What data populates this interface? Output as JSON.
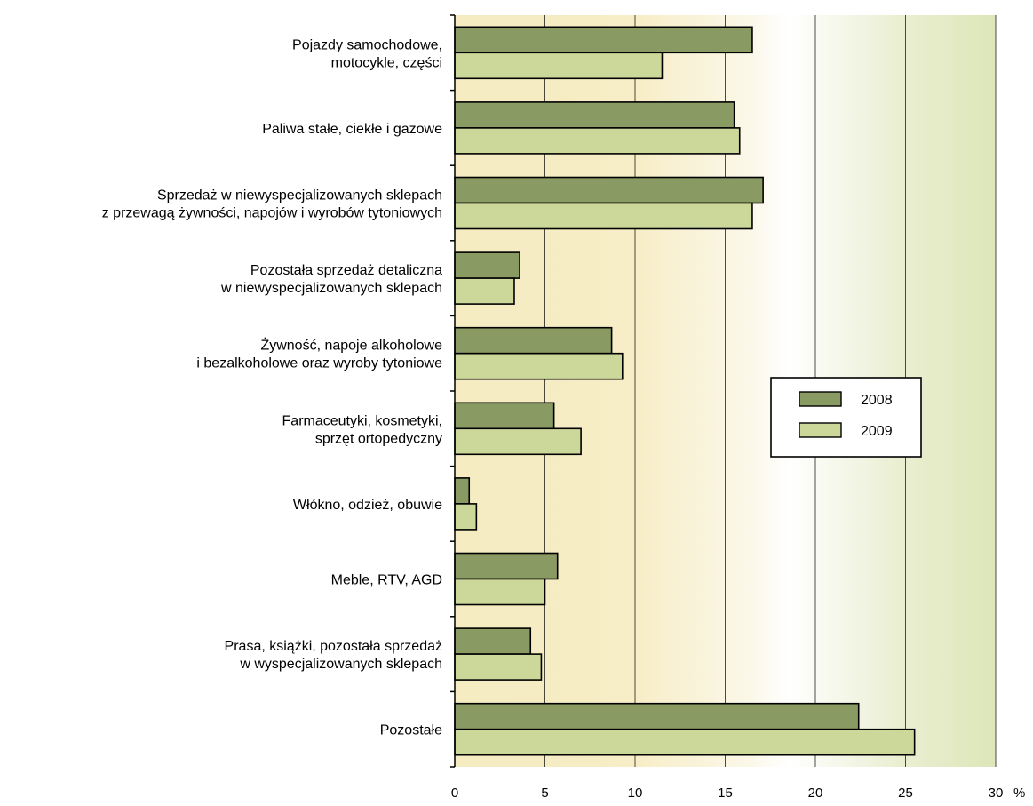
{
  "chart_data": {
    "type": "bar",
    "orientation": "horizontal",
    "categories": [
      [
        "Pojazdy samochodowe,",
        "motocykle, części"
      ],
      [
        "Paliwa stałe, ciekłe i gazowe"
      ],
      [
        "Sprzedaż w niewyspecjalizowanych sklepach",
        "z przewagą żywności, napojów i wyrobów tytoniowych"
      ],
      [
        "Pozostała sprzedaż detaliczna",
        "w niewyspecjalizowanych sklepach"
      ],
      [
        "Żywność, napoje alkoholowe",
        "i bezalkoholowe oraz wyroby tytoniowe"
      ],
      [
        "Farmaceutyki, kosmetyki,",
        "sprzęt ortopedyczny"
      ],
      [
        "Włókno, odzież, obuwie"
      ],
      [
        "Meble, RTV, AGD"
      ],
      [
        "Prasa, książki, pozostała sprzedaż",
        "w wyspecjalizowanych sklepach"
      ],
      [
        "Pozostałe"
      ]
    ],
    "series": [
      {
        "name": "2008",
        "color": "#8a9a63",
        "values": [
          16.5,
          15.5,
          17.1,
          3.6,
          8.7,
          5.5,
          0.8,
          5.7,
          4.2,
          22.4
        ]
      },
      {
        "name": "2009",
        "color": "#ccd89a",
        "values": [
          11.5,
          15.8,
          16.5,
          3.3,
          9.3,
          7.0,
          1.2,
          5.0,
          4.8,
          25.5
        ]
      }
    ],
    "xlim": [
      0,
      30
    ],
    "xticks": [
      0,
      5,
      10,
      15,
      20,
      25,
      30
    ],
    "xunit": "%",
    "grid": "vertical",
    "legend": "right",
    "background": "gradient yellow-white-green"
  }
}
